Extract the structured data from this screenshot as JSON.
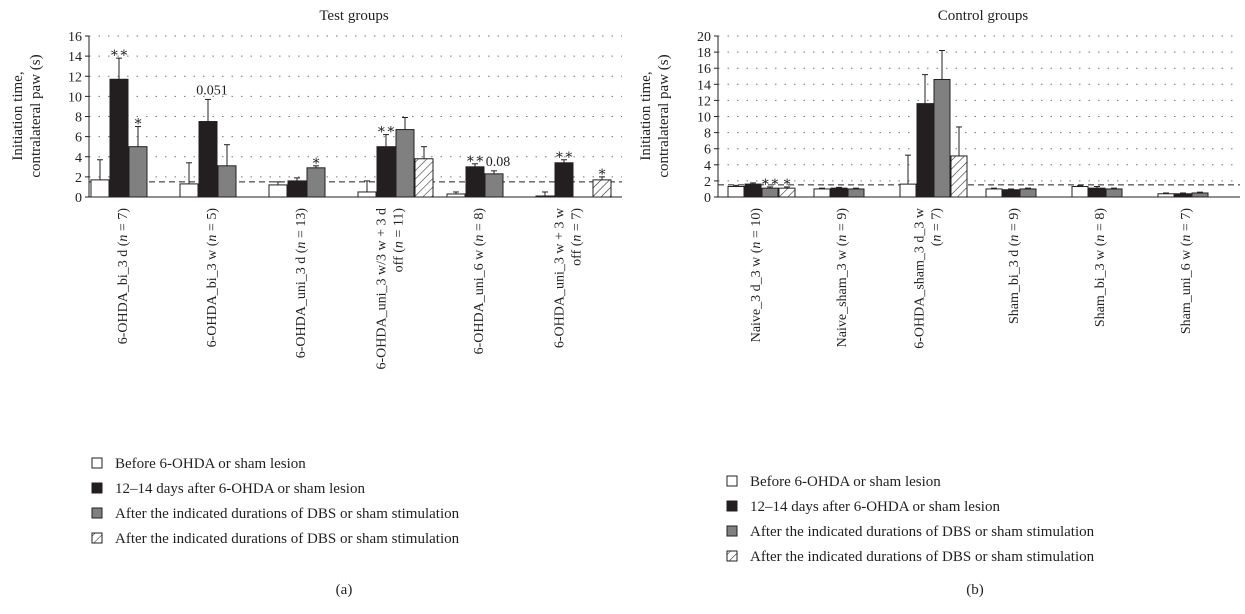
{
  "colors": {
    "before": "#ffffff",
    "after_lesion": "#231f20",
    "after_dbs": "#808080",
    "off": "#ffffff",
    "stroke": "#231f20"
  },
  "legend": {
    "before": "Before 6-OHDA or sham lesion",
    "after_lesion": "12–14 days after 6-OHDA or sham lesion",
    "after_dbs": "After the indicated durations of DBS or sham stimulation",
    "off": "After the indicated durations of DBS or sham stimulation"
  },
  "chart_data": [
    {
      "type": "bar",
      "panel_label": "(a)",
      "title": "Test groups",
      "ylabel": [
        "Initiation time,",
        "contralateral paw (s)"
      ],
      "ylim": [
        0,
        16
      ],
      "yticks": [
        0,
        2,
        4,
        6,
        8,
        10,
        12,
        14,
        16
      ],
      "baseline": 1.5,
      "grid": "dotted",
      "legend_position": "below",
      "series_keys": [
        "before",
        "after_lesion",
        "after_dbs",
        "off"
      ],
      "groups": [
        {
          "label": [
            "6-OHDA_bi_3 d (n = 7)"
          ],
          "bars": {
            "before": {
              "v": 1.7,
              "e": 2.0
            },
            "after_lesion": {
              "v": 11.7,
              "e": 2.1,
              "ann": "∗∗"
            },
            "after_dbs": {
              "v": 5.0,
              "e": 2.0,
              "ann": "∗"
            }
          }
        },
        {
          "label": [
            "6-OHDA_bi_3 w (n = 5)"
          ],
          "bars": {
            "before": {
              "v": 1.3,
              "e": 2.1
            },
            "after_lesion": {
              "v": 7.5,
              "e": 2.2,
              "ann": "0.051"
            },
            "after_dbs": {
              "v": 3.1,
              "e": 2.1
            }
          }
        },
        {
          "label": [
            "6-OHDA_uni_3 d (n = 13)"
          ],
          "bars": {
            "before": {
              "v": 1.2,
              "e": 0.3
            },
            "after_lesion": {
              "v": 1.6,
              "e": 0.3
            },
            "after_dbs": {
              "v": 2.9,
              "e": 0.2,
              "ann": "∗"
            }
          }
        },
        {
          "label": [
            "6-OHDA_uni_3 w/3 w + 3 d",
            "off (n = 11)"
          ],
          "bars": {
            "before": {
              "v": 0.5,
              "e": 1.1
            },
            "after_lesion": {
              "v": 5.0,
              "e": 1.2,
              "ann": "∗∗"
            },
            "after_dbs": {
              "v": 6.7,
              "e": 1.2
            },
            "off": {
              "v": 3.8,
              "e": 1.2
            }
          }
        },
        {
          "label": [
            "6-OHDA_uni_6 w (n = 8)"
          ],
          "bars": {
            "before": {
              "v": 0.3,
              "e": 0.2
            },
            "after_lesion": {
              "v": 3.0,
              "e": 0.3,
              "ann": "∗∗"
            },
            "after_dbs": {
              "v": 2.3,
              "e": 0.3,
              "ann": "0.08"
            }
          }
        },
        {
          "label": [
            "6-OHDA_uni_3 w + 3 w",
            "off (n = 7)"
          ],
          "bars": {
            "before": {
              "v": 0.1,
              "e": 0.4
            },
            "after_lesion": {
              "v": 3.4,
              "e": 0.3,
              "ann": "∗∗"
            },
            "off": {
              "v": 1.7,
              "e": 0.3,
              "ann": "∗"
            }
          }
        }
      ]
    },
    {
      "type": "bar",
      "panel_label": "(b)",
      "title": "Control groups",
      "ylabel": [
        "Initiation time,",
        "contralateral paw (s)"
      ],
      "ylim": [
        0,
        20
      ],
      "yticks": [
        0,
        2,
        4,
        6,
        8,
        10,
        12,
        14,
        16,
        18,
        20
      ],
      "baseline": 1.5,
      "grid": "dotted",
      "legend_position": "below",
      "series_keys": [
        "before",
        "after_lesion",
        "after_dbs",
        "off"
      ],
      "groups": [
        {
          "label": [
            "Naive_3 d_3 w (n = 10)"
          ],
          "bars": {
            "before": {
              "v": 1.3,
              "e": 0.15
            },
            "after_lesion": {
              "v": 1.6,
              "e": 0.15
            },
            "after_dbs": {
              "v": 1.1,
              "e": 0.15,
              "ann": "∗∗"
            },
            "off": {
              "v": 1.1,
              "e": 0.15,
              "ann": "∗"
            }
          }
        },
        {
          "label": [
            "Naive_sham_3 w (n = 9)"
          ],
          "bars": {
            "before": {
              "v": 1.0,
              "e": 0.1
            },
            "after_lesion": {
              "v": 1.1,
              "e": 0.1
            },
            "after_dbs": {
              "v": 1.0,
              "e": 0.1
            }
          }
        },
        {
          "label": [
            "6-OHDA_sham_3 d_3 w",
            "(n = 7)"
          ],
          "bars": {
            "before": {
              "v": 1.6,
              "e": 3.6
            },
            "after_lesion": {
              "v": 11.6,
              "e": 3.6
            },
            "after_dbs": {
              "v": 14.6,
              "e": 3.6
            },
            "off": {
              "v": 5.1,
              "e": 3.6
            }
          }
        },
        {
          "label": [
            "Sham_bi_3 d (n = 9)"
          ],
          "bars": {
            "before": {
              "v": 1.0,
              "e": 0.1
            },
            "after_lesion": {
              "v": 0.9,
              "e": 0.1
            },
            "after_dbs": {
              "v": 1.0,
              "e": 0.1
            }
          }
        },
        {
          "label": [
            "Sham_bi_3 w (n = 8)"
          ],
          "bars": {
            "before": {
              "v": 1.3,
              "e": 0.1
            },
            "after_lesion": {
              "v": 1.1,
              "e": 0.2
            },
            "after_dbs": {
              "v": 1.0,
              "e": 0.1
            }
          }
        },
        {
          "label": [
            "Sham_uni_6 w (n = 7)"
          ],
          "bars": {
            "before": {
              "v": 0.4,
              "e": 0.1
            },
            "after_lesion": {
              "v": 0.4,
              "e": 0.1
            },
            "after_dbs": {
              "v": 0.5,
              "e": 0.1
            }
          }
        }
      ]
    }
  ]
}
